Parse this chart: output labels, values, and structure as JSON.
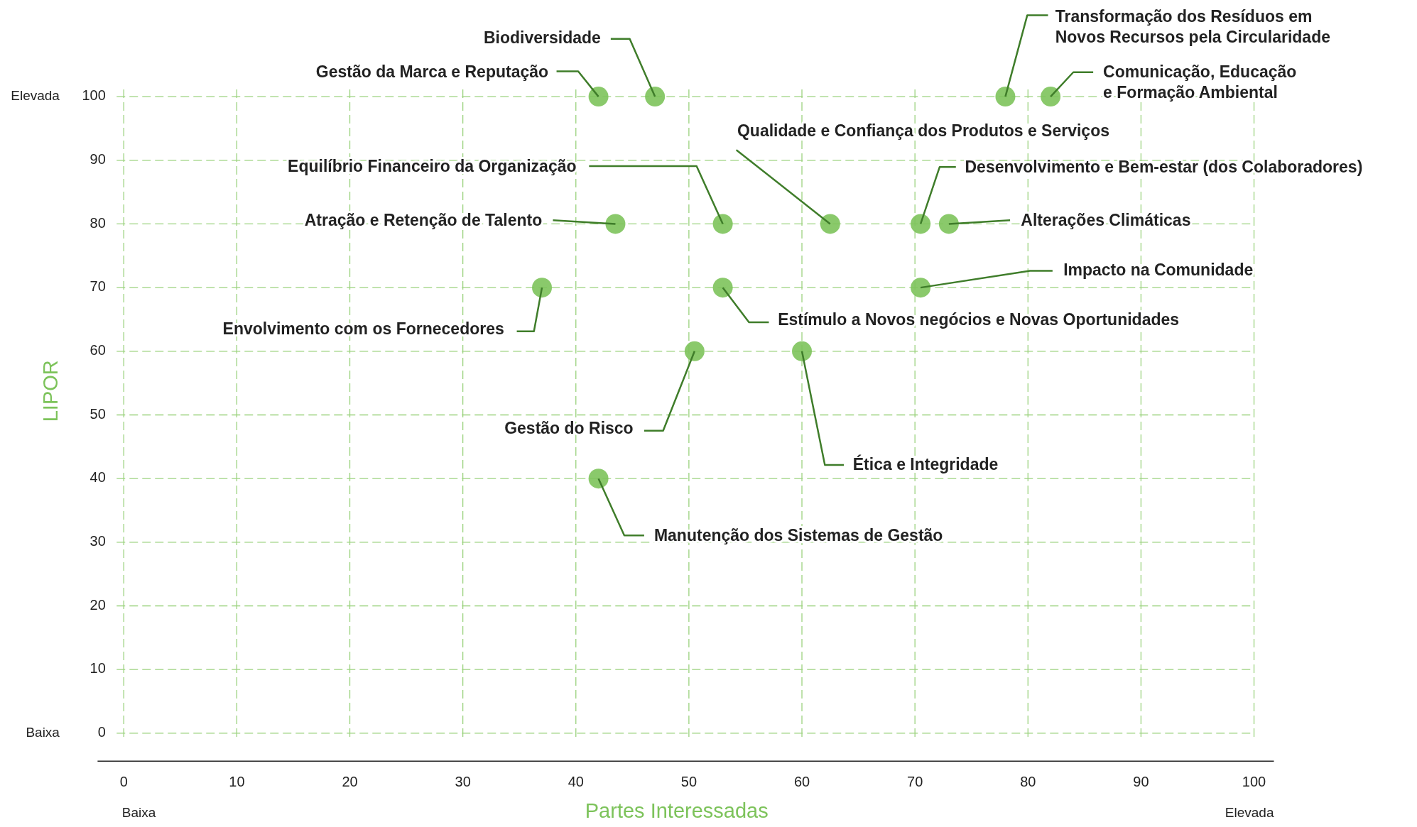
{
  "chart_data": {
    "type": "scatter",
    "xlabel": "Partes Interessadas",
    "ylabel": "LIPOR",
    "x": [
      42,
      47,
      78,
      82,
      43.5,
      53,
      62.5,
      70.5,
      73,
      37,
      53,
      70.5,
      50.5,
      60,
      42
    ],
    "values": [
      100,
      100,
      100,
      100,
      80,
      80,
      80,
      80,
      80,
      70,
      70,
      70,
      60,
      60,
      40
    ],
    "color": "#7dc35b",
    "marker": "circle",
    "grid": true,
    "xlim": [
      0,
      100
    ],
    "ylim": [
      0,
      100
    ],
    "xticks": [
      0,
      10,
      20,
      30,
      40,
      50,
      60,
      70,
      80,
      90,
      100
    ],
    "yticks": [
      0,
      10,
      20,
      30,
      40,
      50,
      60,
      70,
      80,
      90,
      100
    ],
    "annotations": [
      "Elevada",
      "Baixa",
      "Baixa",
      "Elevada",
      {
        "text": "Gestão da Marca e Reputação",
        "x": 42,
        "y": 100
      },
      {
        "text": "Biodiversidade",
        "x": 47,
        "y": 100
      },
      {
        "text": "Transformação dos Resíduos em\nNovos Recursos pela Circularidade",
        "x": 78,
        "y": 100
      },
      {
        "text": "Comunicação, Educação\ne Formação Ambiental",
        "x": 82,
        "y": 100
      },
      {
        "text": "Atração e Retenção de Talento",
        "x": 43.5,
        "y": 80
      },
      {
        "text": "Equilíbrio Financeiro da Organização",
        "x": 53,
        "y": 80
      },
      {
        "text": "Qualidade e Confiança dos Produtos e Serviços",
        "x": 62.5,
        "y": 80
      },
      {
        "text": "Desenvolvimento e Bem-estar (dos Colaboradores)",
        "x": 70.5,
        "y": 80
      },
      {
        "text": "Alterações Climáticas",
        "x": 73,
        "y": 80
      },
      {
        "text": "Envolvimento com os Fornecedores",
        "x": 37,
        "y": 70
      },
      {
        "text": "Estímulo a Novos negócios e Novas Oportunidades",
        "x": 53,
        "y": 70
      },
      {
        "text": "Impacto na Comunidade",
        "x": 70.5,
        "y": 70
      },
      {
        "text": "Gestão do Risco",
        "x": 50.5,
        "y": 60
      },
      {
        "text": "Ética e Integridade",
        "x": 60,
        "y": 60
      },
      {
        "text": "Manutenção dos Sistemas de Gestão",
        "x": 42,
        "y": 40
      }
    ]
  }
}
